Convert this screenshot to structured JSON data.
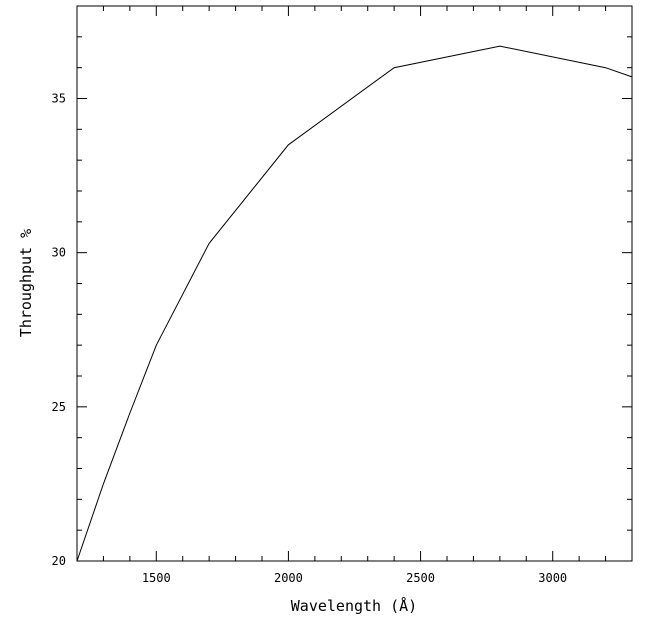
{
  "chart_data": {
    "type": "line",
    "title": "",
    "xlabel": "Wavelength (Å)",
    "ylabel": "Throughput %",
    "xlim": [
      1200,
      3300
    ],
    "ylim": [
      20,
      38
    ],
    "x_ticks": [
      1500,
      2000,
      2500,
      3000
    ],
    "y_ticks": [
      20,
      25,
      30,
      35
    ],
    "x_minor_step": 100,
    "y_minor_step": 1,
    "grid": false,
    "series": [
      {
        "x": [
          1200,
          1300,
          1400,
          1500,
          1700,
          2000,
          2400,
          2800,
          3200,
          3300
        ],
        "y": [
          20.0,
          22.5,
          24.8,
          27.0,
          30.3,
          33.5,
          36.0,
          36.7,
          36.0,
          35.7
        ]
      }
    ]
  }
}
